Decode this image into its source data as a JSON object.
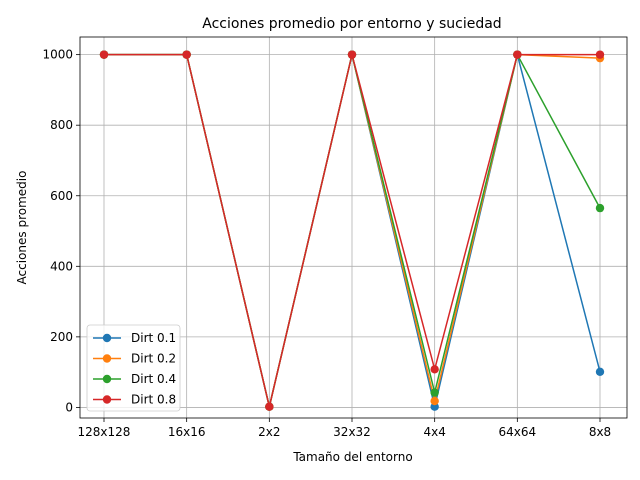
{
  "chart_data": {
    "type": "line",
    "title": "Acciones promedio por entorno y suciedad",
    "xlabel": "Tamaño del entorno",
    "ylabel": "Acciones promedio",
    "categories": [
      "128x128",
      "16x16",
      "2x2",
      "32x32",
      "4x4",
      "64x64",
      "8x8"
    ],
    "ylim": [
      -30,
      1050
    ],
    "yticks": [
      0,
      200,
      400,
      600,
      800,
      1000
    ],
    "grid": true,
    "legend_position": "lower-left",
    "series": [
      {
        "name": "Dirt 0.1",
        "color": "#1f77b4",
        "values": [
          1000,
          1000,
          2,
          1000,
          2,
          1000,
          101
        ]
      },
      {
        "name": "Dirt 0.2",
        "color": "#ff7f0e",
        "values": [
          1000,
          1000,
          2,
          1000,
          18,
          1000,
          990
        ]
      },
      {
        "name": "Dirt 0.4",
        "color": "#2ca02c",
        "values": [
          1000,
          1000,
          2,
          1000,
          42,
          1000,
          565
        ]
      },
      {
        "name": "Dirt 0.8",
        "color": "#d62728",
        "values": [
          1000,
          1000,
          2,
          1000,
          108,
          1000,
          1000
        ]
      }
    ]
  }
}
